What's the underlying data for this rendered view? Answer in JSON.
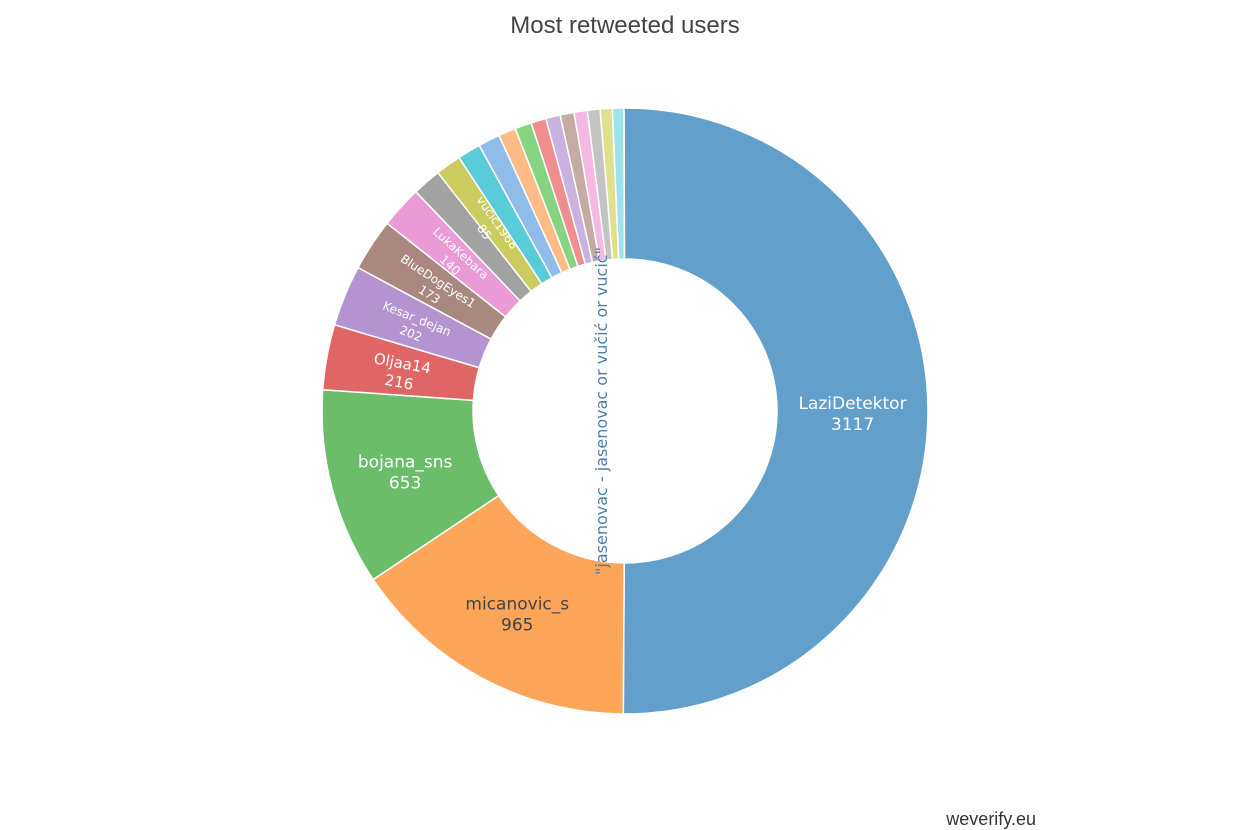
{
  "chart_data": {
    "type": "pie",
    "hole": true,
    "title": "Most retweeted users",
    "center_label": "\"jasenovac - jasenovac or vučić or vucić\"",
    "slices": [
      {
        "label": "LaziDetektor",
        "value": 3117,
        "color": "#629fca"
      },
      {
        "label": "micanovic_s",
        "value": 965,
        "color": "#fda65a"
      },
      {
        "label": "bojana_sns",
        "value": 653,
        "color": "#6bbd6a"
      },
      {
        "label": "Oljaa14",
        "value": 216,
        "color": "#e06666"
      },
      {
        "label": "Kesar_dejan",
        "value": 202,
        "color": "#b394d1"
      },
      {
        "label": "BlueDogEyes1",
        "value": 173,
        "color": "#a98880"
      },
      {
        "label": "LukaKebara",
        "value": 140,
        "color": "#ea9ad5"
      },
      {
        "label": "",
        "value": 95,
        "color": "#a2a2a2"
      },
      {
        "label": "vucic1968",
        "value": 85,
        "color": "#cbcc5f"
      },
      {
        "label": "",
        "value": 77,
        "color": "#5acbd8"
      },
      {
        "label": "",
        "value": 72,
        "color": "#8fbce9"
      },
      {
        "label": "",
        "value": 58,
        "color": "#ffbc87"
      },
      {
        "label": "",
        "value": 55,
        "color": "#86d481"
      },
      {
        "label": "",
        "value": 50,
        "color": "#f08e8d"
      },
      {
        "label": "",
        "value": 48,
        "color": "#c9b2e0"
      },
      {
        "label": "",
        "value": 46,
        "color": "#c6aaa4"
      },
      {
        "label": "",
        "value": 44,
        "color": "#f4b8e1"
      },
      {
        "label": "",
        "value": 42,
        "color": "#c4c4c4"
      },
      {
        "label": "",
        "value": 40,
        "color": "#dfe08e"
      },
      {
        "label": "",
        "value": 38,
        "color": "#9ee3ec"
      }
    ]
  },
  "watermark": "weverify.eu"
}
